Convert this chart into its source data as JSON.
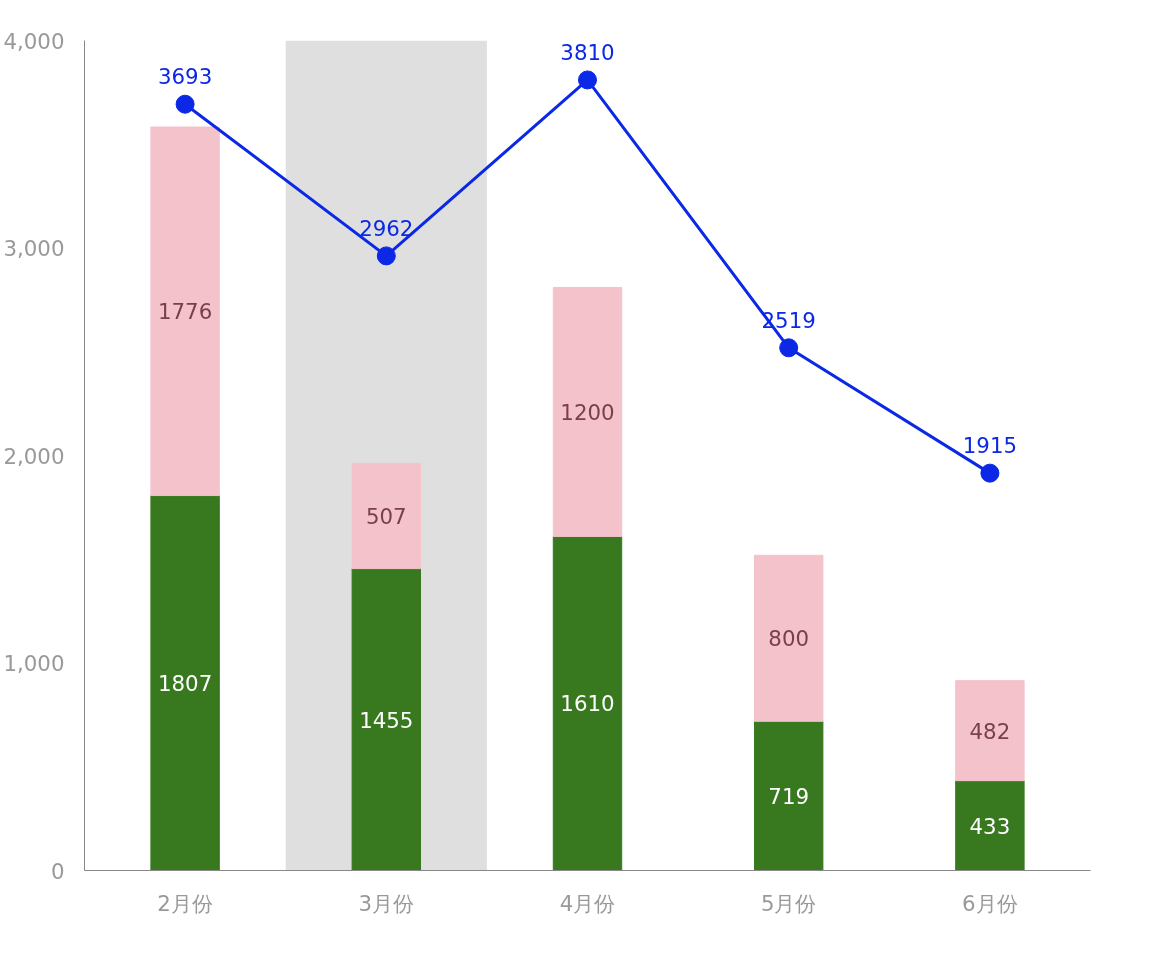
{
  "chart_data": {
    "type": "bar",
    "categories": [
      "2月份",
      "3月份",
      "4月份",
      "5月份",
      "6月份"
    ],
    "stacked": true,
    "data_labels": true,
    "grid": false,
    "ylim": [
      0,
      4000
    ],
    "yticks": [
      0,
      {
        "value": 1000,
        "label": "1,000"
      },
      {
        "value": 2000,
        "label": "2,000"
      },
      {
        "value": 3000,
        "label": "3,000"
      },
      {
        "value": 4000,
        "label": "4,000"
      }
    ],
    "series": [
      {
        "color": "#38791f",
        "values": [
          1807,
          1455,
          1610,
          719,
          433
        ]
      },
      {
        "color": "#f4c2cb",
        "values": [
          1776,
          507,
          1200,
          800,
          482
        ]
      },
      {
        "type": "line",
        "color": "#0a28e6",
        "marker": "circle",
        "line_style": "solid",
        "values": [
          3693,
          2962,
          3810,
          2519,
          1915
        ]
      }
    ],
    "bands": [
      {
        "axis": "x",
        "from": "3月份",
        "to": "3月份",
        "color": "#dfdfdf"
      }
    ]
  }
}
